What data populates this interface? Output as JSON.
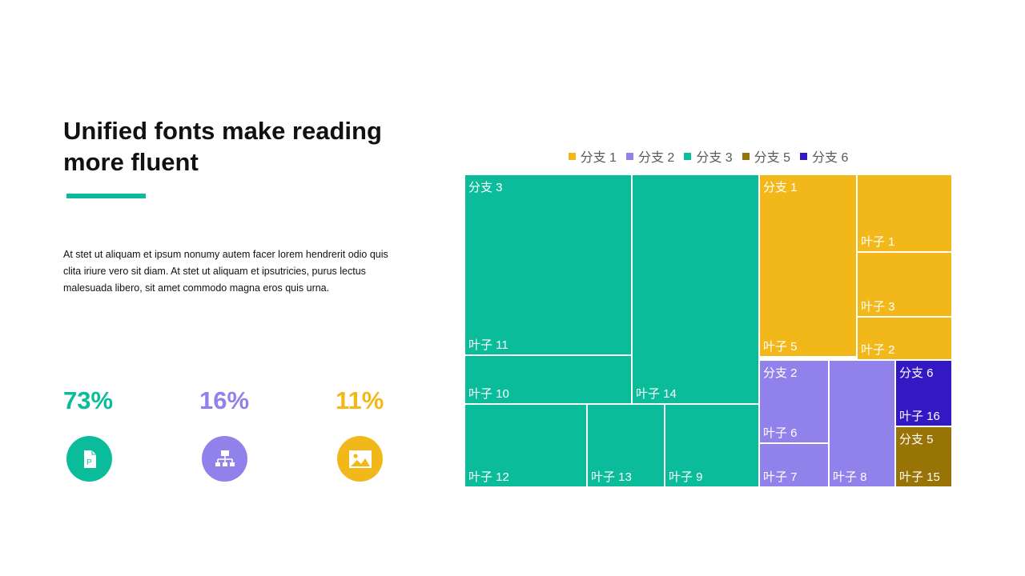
{
  "colors": {
    "branch1": "#F2B81A",
    "branch2": "#9081EB",
    "branch3": "#0ABC9A",
    "branch5": "#987306",
    "branch6": "#3318C4",
    "accent": "#0ABC9A"
  },
  "header": {
    "title_line1": "Unified fonts make reading",
    "title_line2": "more fluent"
  },
  "body_text": "At stet ut aliquam et ipsum nonumy autem facer lorem hendrerit odio quis clita iriure vero sit diam. At stet ut aliquam et ipsutricies, purus lectus malesuada libero, sit amet commodo magna eros quis urna.",
  "stats": [
    {
      "value": "73%",
      "icon": "document-icon",
      "color": "#0ABC9A"
    },
    {
      "value": "16%",
      "icon": "hierarchy-icon",
      "color": "#9081EB"
    },
    {
      "value": "11%",
      "icon": "image-icon",
      "color": "#F2B81A"
    }
  ],
  "chart_data": {
    "type": "treemap",
    "legend": [
      "分支 1",
      "分支 2",
      "分支 3",
      "分支 5",
      "分支 6"
    ],
    "branches": [
      {
        "name": "分支 3",
        "color": "#0ABC9A",
        "leaves": [
          {
            "name": "叶子 11",
            "value": 31
          },
          {
            "name": "叶子 14",
            "value": 27
          },
          {
            "name": "叶子 12",
            "value": 11
          },
          {
            "name": "叶子 10",
            "value": 9
          },
          {
            "name": "叶子 13",
            "value": 7
          },
          {
            "name": "叶子 9",
            "value": 7
          }
        ]
      },
      {
        "name": "分支 1",
        "color": "#F2B81A",
        "leaves": [
          {
            "name": "叶子 5",
            "value": 11
          },
          {
            "name": "叶子 1",
            "value": 5
          },
          {
            "name": "叶子 3",
            "value": 4
          },
          {
            "name": "叶子 2",
            "value": 3
          }
        ]
      },
      {
        "name": "分支 2",
        "color": "#9081EB",
        "leaves": [
          {
            "name": "叶子 8",
            "value": 6
          },
          {
            "name": "叶子 6",
            "value": 4
          },
          {
            "name": "叶子 7",
            "value": 2
          }
        ]
      },
      {
        "name": "分支 6",
        "color": "#3318C4",
        "leaves": [
          {
            "name": "叶子 16",
            "value": 3
          }
        ]
      },
      {
        "name": "分支 5",
        "color": "#987306",
        "leaves": [
          {
            "name": "叶子 15",
            "value": 3
          }
        ]
      }
    ]
  }
}
